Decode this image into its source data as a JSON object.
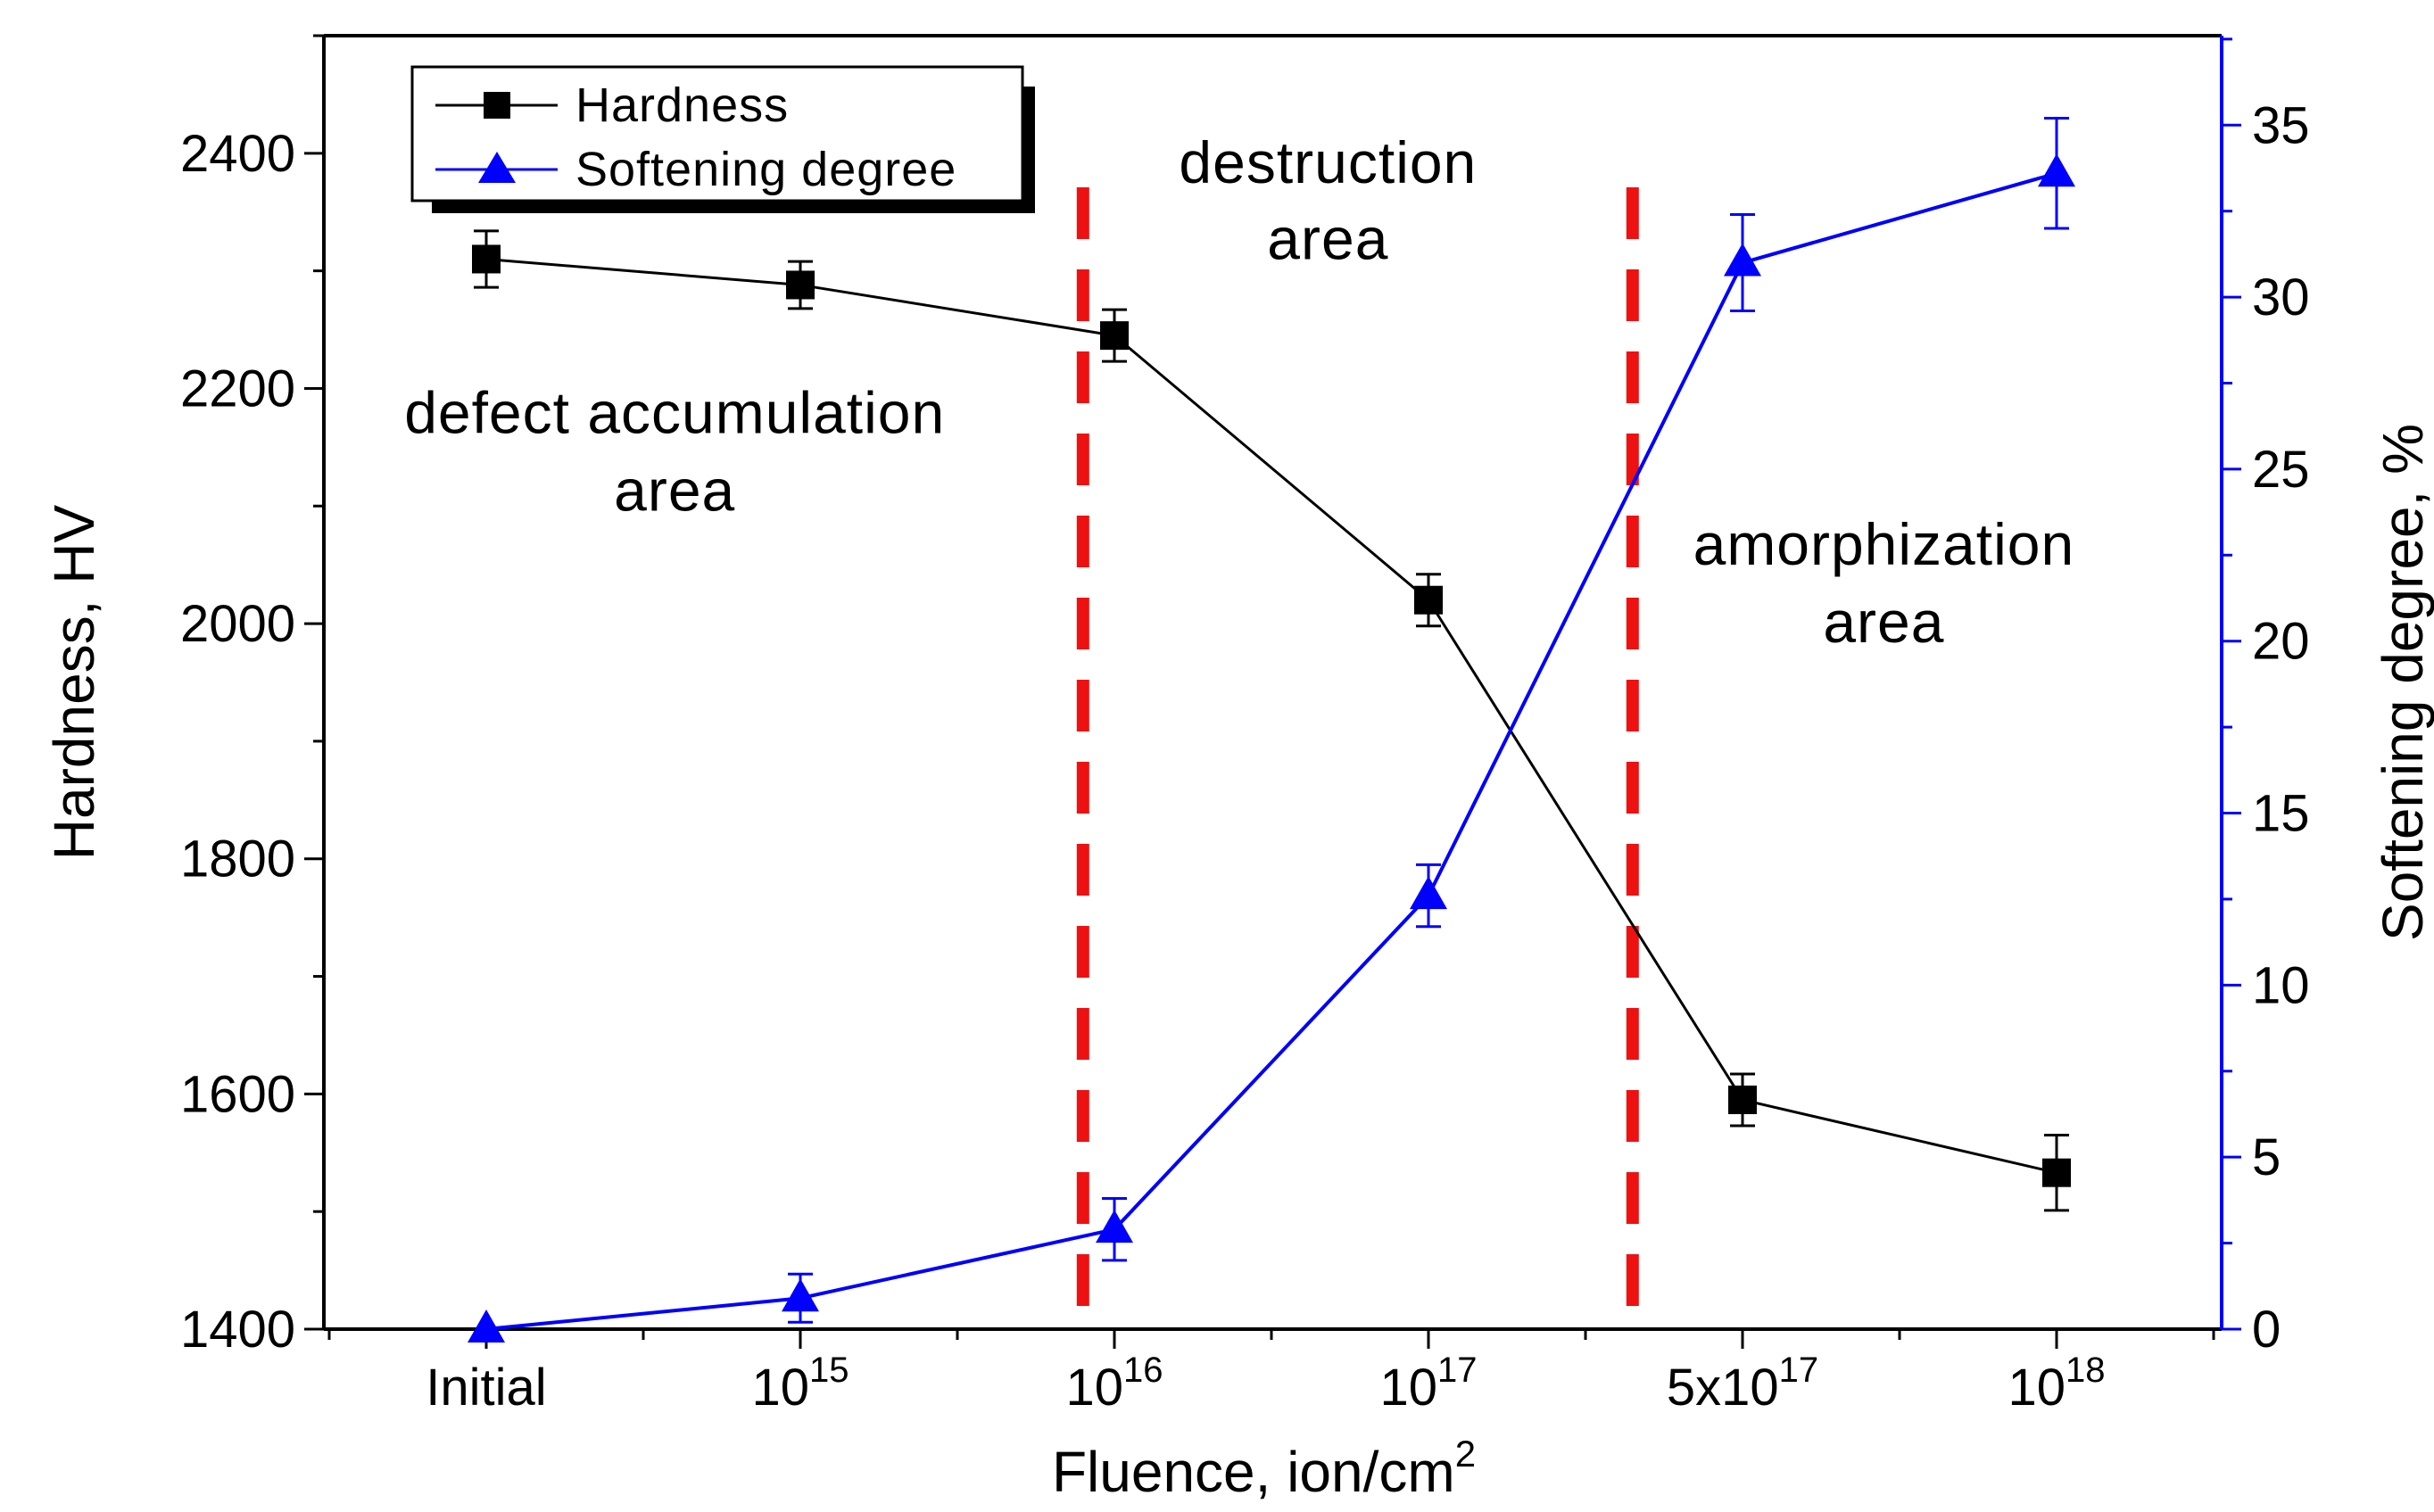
{
  "chart_data": {
    "type": "line",
    "categories": [
      "Initial",
      "10^15",
      "10^16",
      "10^17",
      "5x10^17",
      "10^18"
    ],
    "category_labels": [
      {
        "base": "Initial",
        "exp": ""
      },
      {
        "base": "10",
        "exp": "15"
      },
      {
        "base": "10",
        "exp": "16"
      },
      {
        "base": "10",
        "exp": "17"
      },
      {
        "base": "5x10",
        "exp": "17"
      },
      {
        "base": "10",
        "exp": "18"
      }
    ],
    "xlabel": {
      "text": "Fluence, ion/cm",
      "sup": "2"
    },
    "ylabel_left": "Hardness, HV",
    "ylabel_right": "Softening degree, %",
    "ylim_left": [
      1400,
      2500
    ],
    "ylim_right": [
      0,
      37.6
    ],
    "left_ticks": [
      1400,
      1600,
      1800,
      2000,
      2200,
      2400
    ],
    "right_ticks": [
      0,
      5,
      10,
      15,
      20,
      25,
      30,
      35
    ],
    "series": [
      {
        "name": "Hardness",
        "axis": "left",
        "color": "#000000",
        "marker": "square",
        "values": [
          2310,
          2288,
          2245,
          2020,
          1595,
          1533
        ],
        "errors": [
          24,
          20,
          22,
          22,
          22,
          32
        ]
      },
      {
        "name": "Softening degree",
        "axis": "right",
        "color": "#0000ff",
        "marker": "triangle",
        "values": [
          0,
          0.9,
          2.9,
          12.6,
          31.0,
          33.6
        ],
        "errors": [
          0,
          0.7,
          0.9,
          0.9,
          1.4,
          1.6
        ]
      }
    ],
    "region_boundaries": [
      1.9,
      3.65
    ],
    "boundary_color": "#ee1111",
    "regions": [
      {
        "line1": "defect accumulation",
        "line2": "area",
        "center_x": 0.6,
        "y1": 2162,
        "y2": 2096
      },
      {
        "line1": "destruction",
        "line2": "area",
        "center_x": 2.68,
        "y1": 2375,
        "y2": 2310
      },
      {
        "line1": "amorphization",
        "line2": "area",
        "center_x": 4.45,
        "y1": 2050,
        "y2": 1984
      }
    ],
    "legend": {
      "position": "top-left",
      "entries": [
        "Hardness",
        "Softening degree"
      ]
    },
    "grid": false
  }
}
